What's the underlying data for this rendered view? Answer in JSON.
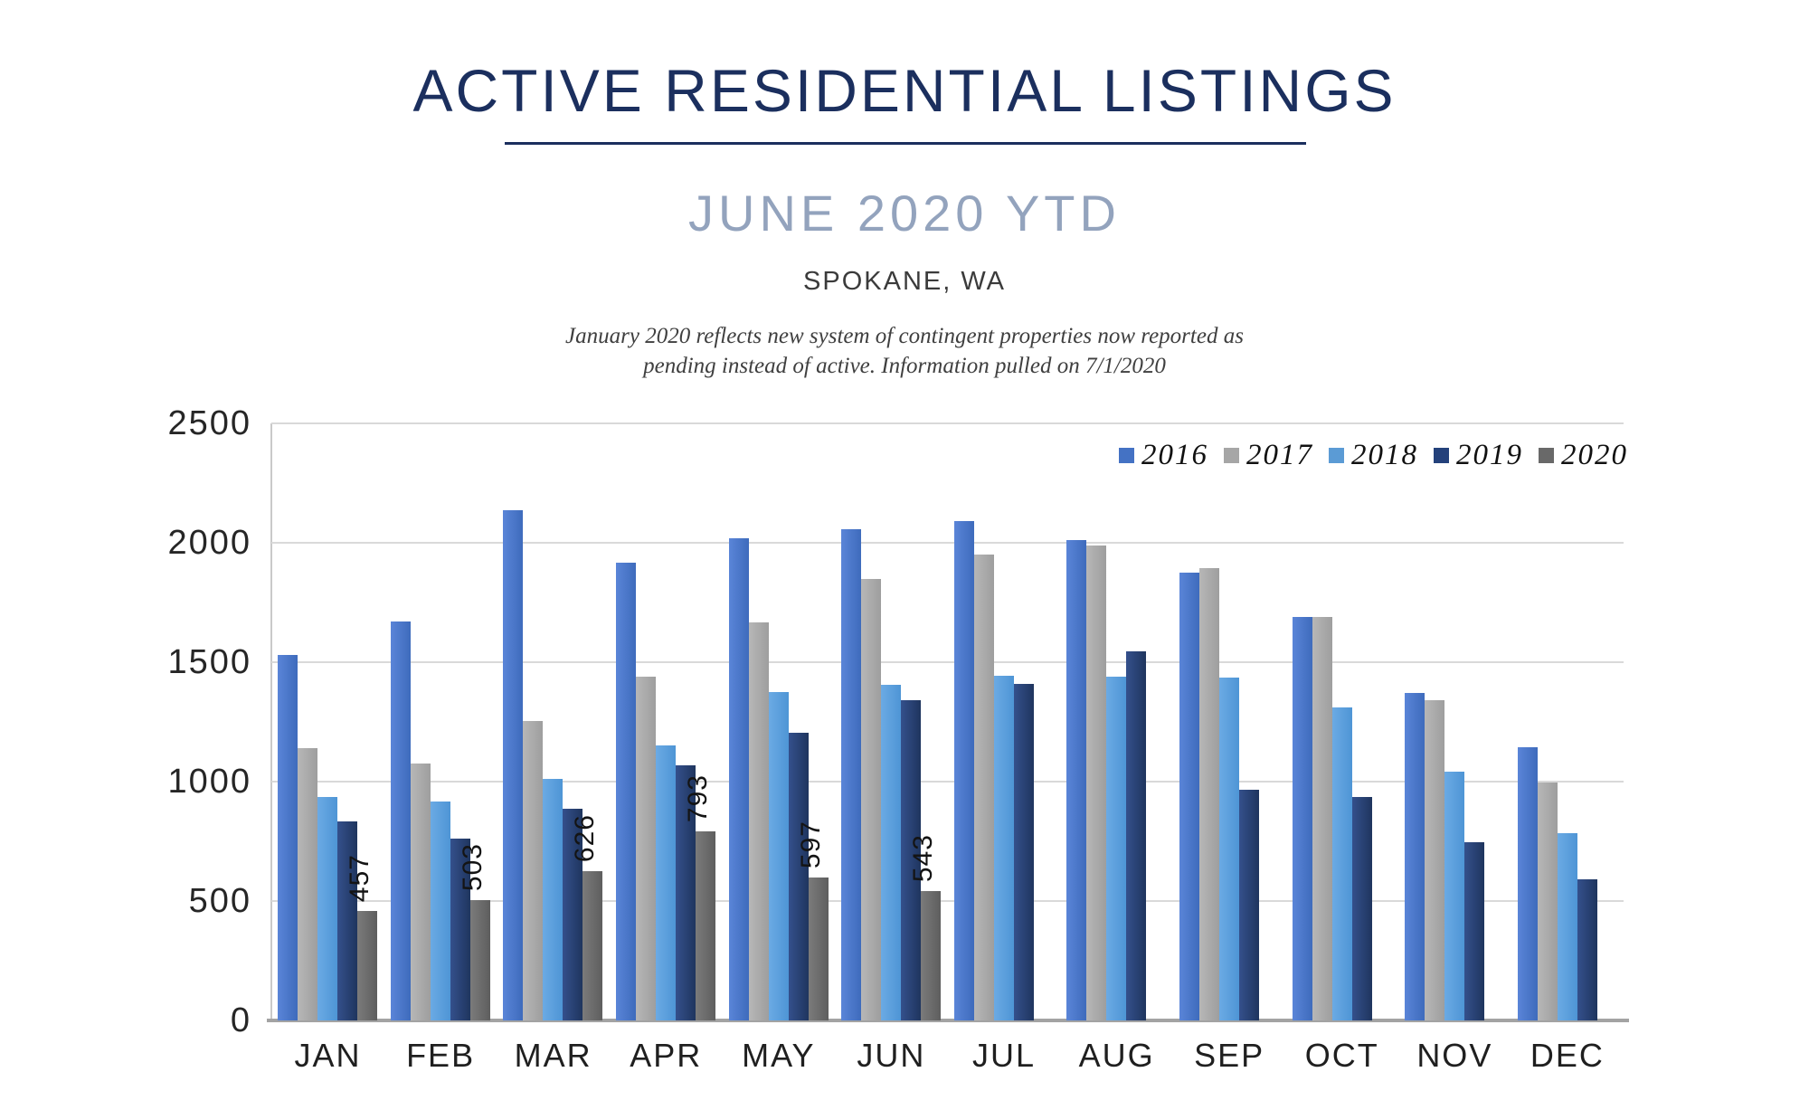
{
  "header": {
    "title": "ACTIVE RESIDENTIAL LISTINGS",
    "subtitle": "JUNE 2020 YTD",
    "location": "SPOKANE, WA",
    "note_line1": "January 2020 reflects new system of contingent properties now reported as",
    "note_line2": "pending instead of active.  Information pulled on 7/1/2020"
  },
  "chart_data": {
    "type": "bar",
    "title": "Active residential listings by month and year",
    "categories": [
      "JAN",
      "FEB",
      "MAR",
      "APR",
      "MAY",
      "JUN",
      "JUL",
      "AUG",
      "SEP",
      "OCT",
      "NOV",
      "DEC"
    ],
    "y_axis": {
      "min": 0,
      "max": 2500,
      "tick_step": 500,
      "tick_labels": [
        "2500",
        "2000",
        "1500",
        "1000",
        "500",
        "0"
      ]
    },
    "grid": true,
    "legend_position": "top-right-inside",
    "colors": {
      "gridline": "#d9d9d9",
      "axis_line": "#a3a3a3",
      "tick_text": "#262626"
    },
    "series": [
      {
        "name": "2016",
        "color": "#4472c4",
        "fill_from": "#5a85d8",
        "fill_to": "#3e6bbc",
        "values": [
          1530,
          1670,
          2135,
          1915,
          2020,
          2055,
          2090,
          2010,
          1875,
          1690,
          1370,
          1145
        ]
      },
      {
        "name": "2017",
        "color": "#a6a6a6",
        "fill_from": "#b7b7b7",
        "fill_to": "#9e9e9e",
        "values": [
          1140,
          1075,
          1255,
          1440,
          1665,
          1850,
          1950,
          1990,
          1895,
          1690,
          1340,
          995
        ]
      },
      {
        "name": "2018",
        "color": "#5b9bd5",
        "fill_from": "#6baae4",
        "fill_to": "#4e95d5",
        "values": [
          935,
          915,
          1010,
          1150,
          1375,
          1405,
          1445,
          1440,
          1435,
          1310,
          1040,
          785
        ]
      },
      {
        "name": "2019",
        "color": "#24417b",
        "fill_from": "#34508c",
        "fill_to": "#1f355e",
        "values": [
          835,
          760,
          885,
          1070,
          1205,
          1340,
          1410,
          1545,
          965,
          935,
          745,
          590
        ]
      },
      {
        "name": "2020",
        "color": "#696969",
        "fill_from": "#7b7b7b",
        "fill_to": "#5e5e5e",
        "show_data_labels": true,
        "values": [
          457,
          503,
          626,
          793,
          597,
          543,
          null,
          null,
          null,
          null,
          null,
          null
        ]
      }
    ]
  }
}
